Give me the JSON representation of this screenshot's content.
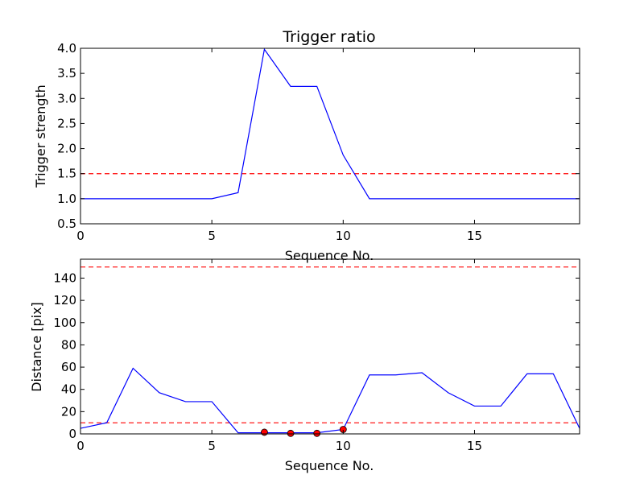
{
  "chart_data": [
    {
      "type": "line",
      "title": "Trigger ratio",
      "xlabel": "Sequence No.",
      "ylabel": "Trigger strength",
      "xlim": [
        0,
        19
      ],
      "ylim": [
        0.5,
        4.0
      ],
      "xticks": [
        0,
        5,
        10,
        15
      ],
      "yticks": [
        0.5,
        1.0,
        1.5,
        2.0,
        2.5,
        3.0,
        3.5,
        4.0
      ],
      "ytick_labels": [
        "0.5",
        "1.0",
        "1.5",
        "2.0",
        "2.5",
        "3.0",
        "3.5",
        "4.0"
      ],
      "grid": false,
      "series": [
        {
          "color": "#0000ff",
          "style": "solid",
          "x": [
            0,
            1,
            2,
            3,
            4,
            5,
            6,
            7,
            8,
            9,
            10,
            11,
            12,
            13,
            14,
            15,
            16,
            17,
            18,
            19
          ],
          "values": [
            1.0,
            1.0,
            1.0,
            1.0,
            1.0,
            1.0,
            1.12,
            3.98,
            3.24,
            3.24,
            1.87,
            1.0,
            1.0,
            1.0,
            1.0,
            1.0,
            1.0,
            1.0,
            1.0,
            1.0
          ]
        }
      ],
      "hlines": [
        {
          "y": 1.5,
          "color": "#ff0000",
          "style": "dashed"
        }
      ]
    },
    {
      "type": "line",
      "title": "",
      "xlabel": "Sequence No.",
      "ylabel": "Distance [pix]",
      "xlim": [
        0,
        19
      ],
      "ylim": [
        0,
        157
      ],
      "xticks": [
        0,
        5,
        10,
        15
      ],
      "yticks": [
        0,
        20,
        40,
        60,
        80,
        100,
        120,
        140
      ],
      "ytick_labels": [
        "0",
        "20",
        "40",
        "60",
        "80",
        "100",
        "120",
        "140"
      ],
      "grid": false,
      "series": [
        {
          "color": "#0000ff",
          "style": "solid",
          "x": [
            0,
            1,
            2,
            3,
            4,
            5,
            6,
            7,
            8,
            9,
            10,
            11,
            12,
            13,
            14,
            15,
            16,
            17,
            18,
            19
          ],
          "values": [
            5,
            10,
            59,
            37,
            29,
            29,
            1,
            1,
            1,
            1,
            4,
            53,
            53,
            55,
            37,
            25,
            25,
            54,
            54,
            5
          ]
        }
      ],
      "markers": {
        "color": "#ff0000",
        "x": [
          7,
          8,
          9,
          10
        ],
        "values": [
          1.5,
          0.5,
          0.5,
          4
        ]
      },
      "hlines": [
        {
          "y": 150,
          "color": "#ff0000",
          "style": "dashed"
        },
        {
          "y": 10,
          "color": "#ff0000",
          "style": "dashed"
        }
      ]
    }
  ]
}
